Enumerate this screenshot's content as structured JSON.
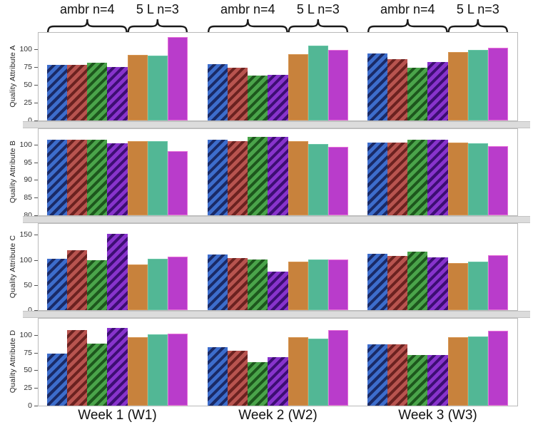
{
  "chrome": {
    "panel_border_color": "#b9b9b9",
    "divider_fill": "#dcdcdc",
    "divider_border": "#c3c3c3",
    "background": "#ffffff",
    "text_color": "#111111"
  },
  "header": {
    "bracket_labels": [
      "ambr n=4",
      "5 L n=3",
      "ambr n=4",
      "5 L n=3",
      "ambr n=4",
      "5 L n=3"
    ]
  },
  "chart_data": {
    "type": "bar",
    "title": "",
    "xlabel": "",
    "x_categories": [
      "Week 1 (W1)",
      "Week 2 (W2)",
      "Week 3 (W3)"
    ],
    "group_brackets": [
      {
        "label": "ambr n=4",
        "bars": 4
      },
      {
        "label": "5 L n=3",
        "bars": 3
      }
    ],
    "legend_position": "none",
    "grid": false,
    "series": [
      {
        "name": "ambr-blue",
        "fill": "#3d6dcc",
        "stripe": "#1a2a66",
        "pattern": "hatched"
      },
      {
        "name": "ambr-red",
        "fill": "#b8544f",
        "stripe": "#6b2220",
        "pattern": "hatched"
      },
      {
        "name": "ambr-green",
        "fill": "#4aa44a",
        "stripe": "#1d571d",
        "pattern": "hatched"
      },
      {
        "name": "ambr-purple",
        "fill": "#8833cc",
        "stripe": "#3d0e73",
        "pattern": "hatched"
      },
      {
        "name": "5L-orange",
        "fill": "#c8823c",
        "edge": "#d79550",
        "pattern": "solid"
      },
      {
        "name": "5L-teal",
        "fill": "#52b795",
        "edge": "#67c6a6",
        "pattern": "solid"
      },
      {
        "name": "5L-magenta",
        "fill": "#b93ccb",
        "edge": "#e76fd9",
        "pattern": "solid"
      }
    ],
    "panels": [
      {
        "ylabel": "Quality Attribute A",
        "yticks": [
          0,
          25,
          50,
          75,
          100
        ],
        "ylim": [
          0,
          123
        ],
        "values": [
          [
            78,
            78,
            81,
            75,
            92,
            91,
            117
          ],
          [
            79,
            74,
            63,
            64,
            93,
            105,
            99
          ],
          [
            94,
            86,
            74,
            82,
            96,
            99,
            102
          ]
        ]
      },
      {
        "ylabel": "Quality Attribute B",
        "yticks": [
          80,
          85,
          90,
          95,
          100
        ],
        "ylim": [
          80,
          104.4
        ],
        "values": [
          [
            101.3,
            101.3,
            101.3,
            100.4,
            101.0,
            100.9,
            98.1
          ],
          [
            101.4,
            101.0,
            102.2,
            102.2,
            100.9,
            100.1,
            99.4
          ],
          [
            100.6,
            100.5,
            101.4,
            101.4,
            100.6,
            100.4,
            99.5
          ]
        ]
      },
      {
        "ylabel": "Quality Attribute C",
        "yticks": [
          0,
          50,
          100,
          150
        ],
        "ylim": [
          0,
          172
        ],
        "values": [
          [
            103,
            119,
            100,
            152,
            91,
            103,
            107
          ],
          [
            111,
            104,
            101,
            77,
            97,
            101,
            101
          ],
          [
            113,
            108,
            116,
            105,
            94,
            96,
            109
          ]
        ]
      },
      {
        "ylabel": "Quality Attribute D",
        "yticks": [
          0,
          25,
          50,
          75,
          100
        ],
        "ylim": [
          0,
          123
        ],
        "values": [
          [
            74,
            107,
            88,
            110,
            97,
            101,
            102
          ],
          [
            83,
            78,
            61,
            69,
            97,
            95,
            107
          ],
          [
            87,
            87,
            72,
            72,
            97,
            98,
            106
          ]
        ]
      }
    ]
  }
}
